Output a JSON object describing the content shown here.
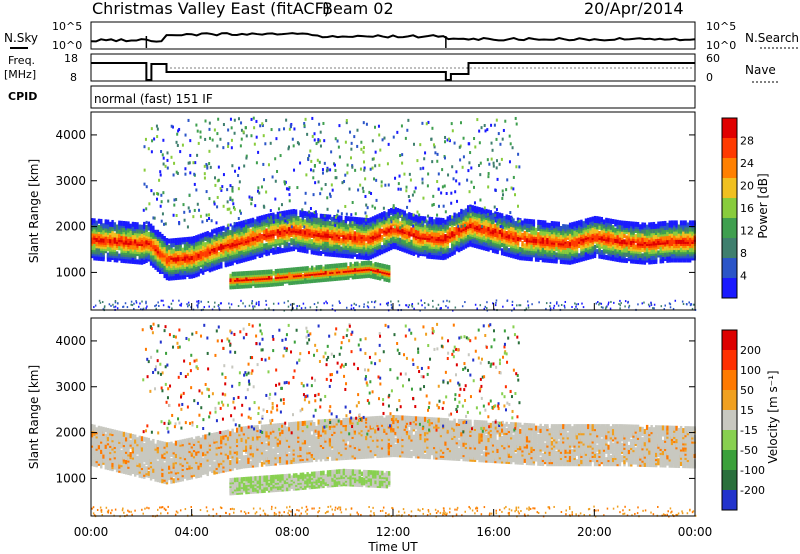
{
  "header": {
    "title": "Christmas Valley East (fitACF)",
    "beam": "Beam 02",
    "date": "20/Apr/2014"
  },
  "summary": {
    "nsky_label": "N.Sky",
    "nsky_ticks": [
      "10^5",
      "10^0"
    ],
    "nsearch_label": "N.Search",
    "nsearch_ticks": [
      "10^5",
      "10^0"
    ],
    "freq_label": "Freq.",
    "freq_unit": "[MHz]",
    "freq_ticks": [
      "18",
      "8"
    ],
    "nave_label": "Nave",
    "nave_ticks": [
      "60",
      "0"
    ],
    "cpid_label": "CPID",
    "cpid_text": "normal (fast) 151 IF"
  },
  "colors": {
    "power": [
      "#1a1aff",
      "#2b55c8",
      "#3f7f6e",
      "#3f9f4f",
      "#88cc3c",
      "#f0c020",
      "#ff8000",
      "#ff3a00",
      "#e00000"
    ],
    "velocity": [
      "#2233cc",
      "#2a6f3c",
      "#3aa03a",
      "#88d050",
      "#c8c8c0",
      "#f0a020",
      "#ff7a00",
      "#ff3000",
      "#dd0000"
    ],
    "grey_scatter": "#c8c8c0"
  },
  "chart_data": [
    {
      "type": "heatmap",
      "panel": "power",
      "ylabel": "Slant Range [km]",
      "yticks": [
        1000,
        2000,
        3000,
        4000
      ],
      "ylim": [
        180,
        4500
      ],
      "xlim": [
        0,
        24
      ],
      "colorbar": {
        "label": "Power [dB]",
        "ticks": [
          "28",
          "24",
          "20",
          "16",
          "12",
          "8",
          "4"
        ]
      },
      "features": [
        {
          "name": "main band",
          "t": [
            0,
            1,
            2,
            2.2,
            3,
            4,
            5,
            6,
            7,
            8,
            9,
            10,
            11,
            12,
            13,
            14,
            15,
            16,
            17,
            18,
            19,
            20,
            21,
            22,
            23,
            24
          ],
          "range": [
            1750,
            1700,
            1650,
            1700,
            1300,
            1350,
            1550,
            1700,
            1850,
            1950,
            1850,
            1800,
            1750,
            2000,
            1800,
            1750,
            2050,
            1900,
            1750,
            1700,
            1650,
            1800,
            1700,
            1650,
            1700,
            1700
          ]
        },
        {
          "name": "lower band",
          "t": [
            5.5,
            7,
            8,
            9,
            10,
            11,
            11.8
          ],
          "range": [
            850,
            900,
            950,
            1000,
            1050,
            1100,
            1000
          ]
        }
      ]
    },
    {
      "type": "heatmap",
      "panel": "velocity",
      "ylabel": "Slant Range [km]",
      "yticks": [
        1000,
        2000,
        3000,
        4000
      ],
      "ylim": [
        180,
        4500
      ],
      "xlim": [
        0,
        24
      ],
      "xlabel": "Time UT",
      "xticks": [
        "00:00",
        "04:00",
        "08:00",
        "12:00",
        "16:00",
        "20:00",
        "00:00"
      ],
      "colorbar": {
        "label": "Velocity [m s⁻¹]",
        "ticks": [
          "200",
          "100",
          "50",
          "15",
          "-15",
          "-50",
          "-100",
          "-200"
        ]
      },
      "features": [
        {
          "name": "ground scatter band",
          "t": [
            0,
            3,
            6,
            9,
            12,
            15,
            18,
            21,
            24
          ],
          "range": [
            1750,
            1350,
            1700,
            1850,
            1950,
            1850,
            1750,
            1750,
            1700
          ]
        },
        {
          "name": "lower band",
          "t": [
            5.5,
            8,
            10,
            11.8
          ],
          "range": [
            850,
            950,
            1050,
            1000
          ]
        }
      ]
    }
  ]
}
